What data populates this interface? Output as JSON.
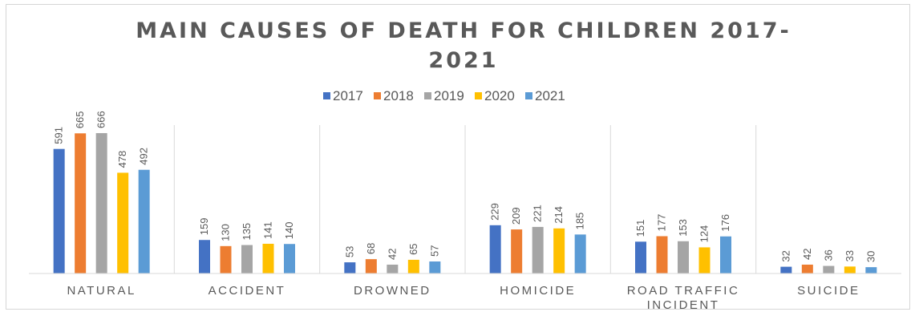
{
  "chart_data": {
    "type": "bar",
    "title_lines": [
      "MAIN CAUSES OF DEATH FOR CHILDREN 2017-",
      "2021"
    ],
    "categories": [
      [
        "NATURAL"
      ],
      [
        "ACCIDENT"
      ],
      [
        "DROWNED"
      ],
      [
        "HOMICIDE"
      ],
      [
        "ROAD TRAFFIC",
        "INCIDENT"
      ],
      [
        "SUICIDE"
      ]
    ],
    "series": [
      {
        "name": "2017",
        "color": "#4472c4",
        "values": [
          591,
          159,
          53,
          229,
          151,
          32
        ]
      },
      {
        "name": "2018",
        "color": "#ed7d31",
        "values": [
          665,
          130,
          68,
          209,
          177,
          42
        ]
      },
      {
        "name": "2019",
        "color": "#a5a5a5",
        "values": [
          666,
          135,
          42,
          221,
          153,
          36
        ]
      },
      {
        "name": "2020",
        "color": "#ffc000",
        "values": [
          478,
          141,
          65,
          214,
          124,
          33
        ]
      },
      {
        "name": "2021",
        "color": "#5b9bd5",
        "values": [
          492,
          140,
          57,
          185,
          176,
          30
        ]
      }
    ],
    "ylim": [
      0,
      700
    ],
    "legend_position": "top",
    "gridlines": "vertical category separators",
    "data_labels": "rotated above bars"
  }
}
